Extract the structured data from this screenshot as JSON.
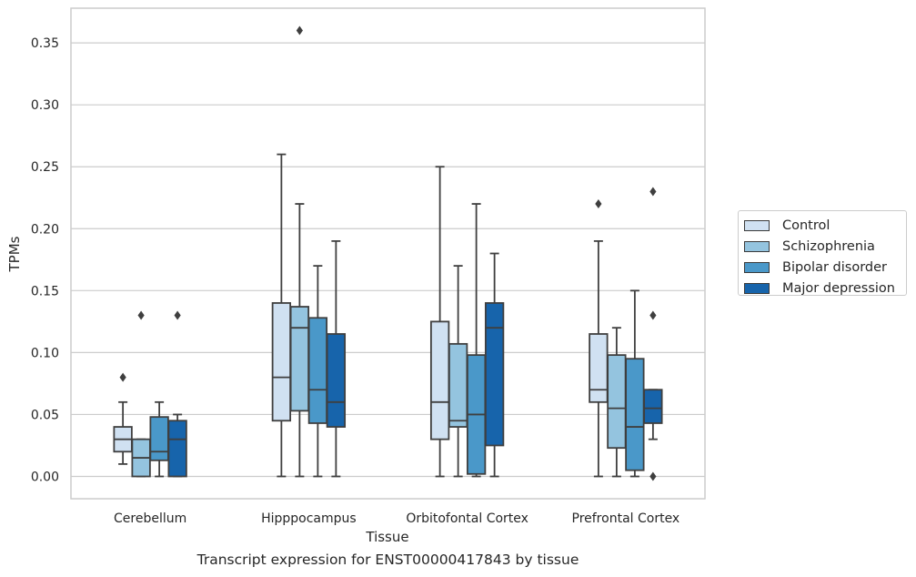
{
  "chart_data": {
    "type": "box",
    "title": "Transcript expression for ENST00000417843 by tissue",
    "xlabel": "Tissue",
    "ylabel": "TPMs",
    "ylim": [
      -0.018,
      0.378
    ],
    "yticks": [
      "0.00",
      "0.05",
      "0.10",
      "0.15",
      "0.20",
      "0.25",
      "0.30",
      "0.35"
    ],
    "grid": true,
    "legend_position": "right",
    "categories": [
      "Cerebellum",
      "Hipppocampus",
      "Orbitofontal Cortex",
      "Prefrontal Cortex"
    ],
    "series": [
      {
        "name": "Control",
        "color": "#d0e1f2",
        "boxes": [
          {
            "whislo": 0.01,
            "q1": 0.02,
            "med": 0.03,
            "q3": 0.04,
            "whishi": 0.06,
            "fliers": [
              0.08
            ]
          },
          {
            "whislo": 0.0,
            "q1": 0.045,
            "med": 0.08,
            "q3": 0.14,
            "whishi": 0.26,
            "fliers": []
          },
          {
            "whislo": 0.0,
            "q1": 0.03,
            "med": 0.06,
            "q3": 0.125,
            "whishi": 0.25,
            "fliers": []
          },
          {
            "whislo": 0.0,
            "q1": 0.06,
            "med": 0.07,
            "q3": 0.115,
            "whishi": 0.19,
            "fliers": [
              0.22
            ]
          }
        ]
      },
      {
        "name": "Schizophrenia",
        "color": "#94c4df",
        "boxes": [
          {
            "whislo": 0.0,
            "q1": 0.0,
            "med": 0.015,
            "q3": 0.03,
            "whishi": 0.03,
            "fliers": [
              0.13
            ]
          },
          {
            "whislo": 0.0,
            "q1": 0.053,
            "med": 0.12,
            "q3": 0.137,
            "whishi": 0.22,
            "fliers": [
              0.36
            ]
          },
          {
            "whislo": 0.0,
            "q1": 0.04,
            "med": 0.045,
            "q3": 0.107,
            "whishi": 0.17,
            "fliers": []
          },
          {
            "whislo": 0.0,
            "q1": 0.023,
            "med": 0.055,
            "q3": 0.098,
            "whishi": 0.12,
            "fliers": []
          }
        ]
      },
      {
        "name": "Bipolar disorder",
        "color": "#4a98c9",
        "boxes": [
          {
            "whislo": 0.0,
            "q1": 0.013,
            "med": 0.02,
            "q3": 0.048,
            "whishi": 0.06,
            "fliers": []
          },
          {
            "whislo": 0.0,
            "q1": 0.043,
            "med": 0.07,
            "q3": 0.128,
            "whishi": 0.17,
            "fliers": []
          },
          {
            "whislo": 0.0,
            "q1": 0.002,
            "med": 0.05,
            "q3": 0.098,
            "whishi": 0.22,
            "fliers": []
          },
          {
            "whislo": 0.0,
            "q1": 0.005,
            "med": 0.04,
            "q3": 0.095,
            "whishi": 0.15,
            "fliers": []
          }
        ]
      },
      {
        "name": "Major depression",
        "color": "#1764ab",
        "boxes": [
          {
            "whislo": 0.0,
            "q1": 0.0,
            "med": 0.03,
            "q3": 0.045,
            "whishi": 0.05,
            "fliers": [
              0.13
            ]
          },
          {
            "whislo": 0.0,
            "q1": 0.04,
            "med": 0.06,
            "q3": 0.115,
            "whishi": 0.19,
            "fliers": []
          },
          {
            "whislo": 0.0,
            "q1": 0.025,
            "med": 0.12,
            "q3": 0.14,
            "whishi": 0.18,
            "fliers": []
          },
          {
            "whislo": 0.03,
            "q1": 0.043,
            "med": 0.055,
            "q3": 0.07,
            "whishi": 0.07,
            "fliers": [
              0.23,
              0.13,
              0.0
            ]
          }
        ]
      }
    ]
  }
}
